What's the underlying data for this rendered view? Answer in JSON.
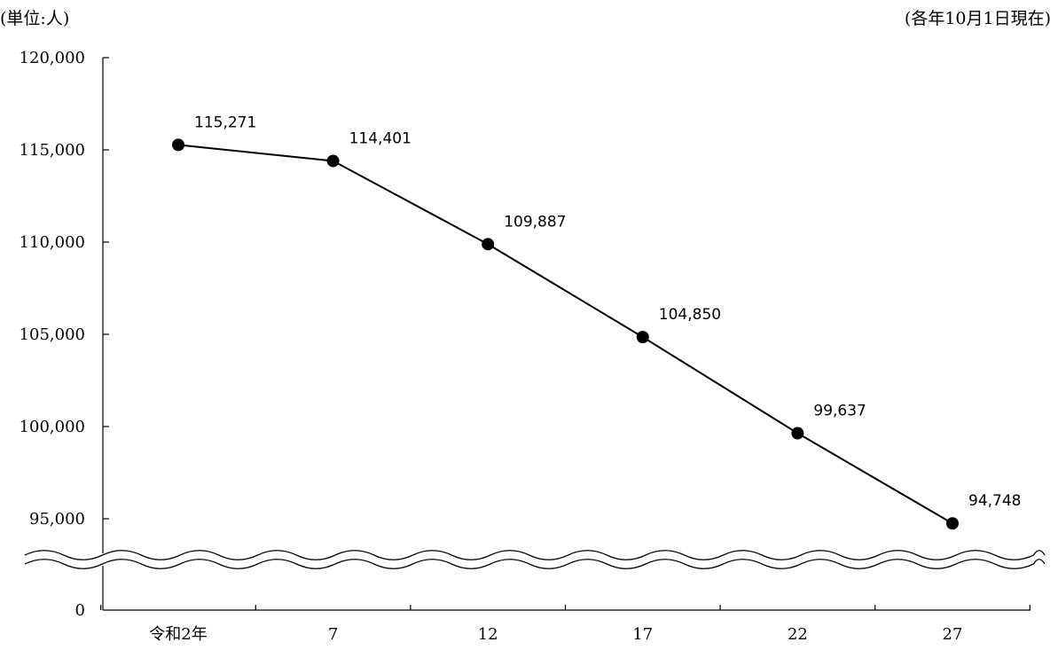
{
  "unit_label": "(単位:人)",
  "date_note": "(各年10月1日現在)",
  "chart_data": {
    "type": "line",
    "title": "",
    "xlabel": "",
    "ylabel": "",
    "categories": [
      "令和2年",
      "7",
      "12",
      "17",
      "22",
      "27"
    ],
    "series": [
      {
        "values": [
          115271,
          114401,
          109887,
          104850,
          99637,
          94748
        ]
      }
    ],
    "data_labels": [
      "115,271",
      "114,401",
      "109,887",
      "104,850",
      "99,637",
      "94,748"
    ],
    "y_ticks": [
      {
        "value": 120000,
        "label": "120,000"
      },
      {
        "value": 115000,
        "label": "115,000"
      },
      {
        "value": 110000,
        "label": "110,000"
      },
      {
        "value": 105000,
        "label": "105,000"
      },
      {
        "value": 100000,
        "label": "100,000"
      },
      {
        "value": 95000,
        "label": "95,000"
      },
      {
        "value": 0,
        "label": "0"
      }
    ],
    "ylim": [
      95000,
      120000
    ],
    "axis_break": true,
    "grid": false,
    "line_color": "#000000",
    "marker_color": "#000000"
  }
}
